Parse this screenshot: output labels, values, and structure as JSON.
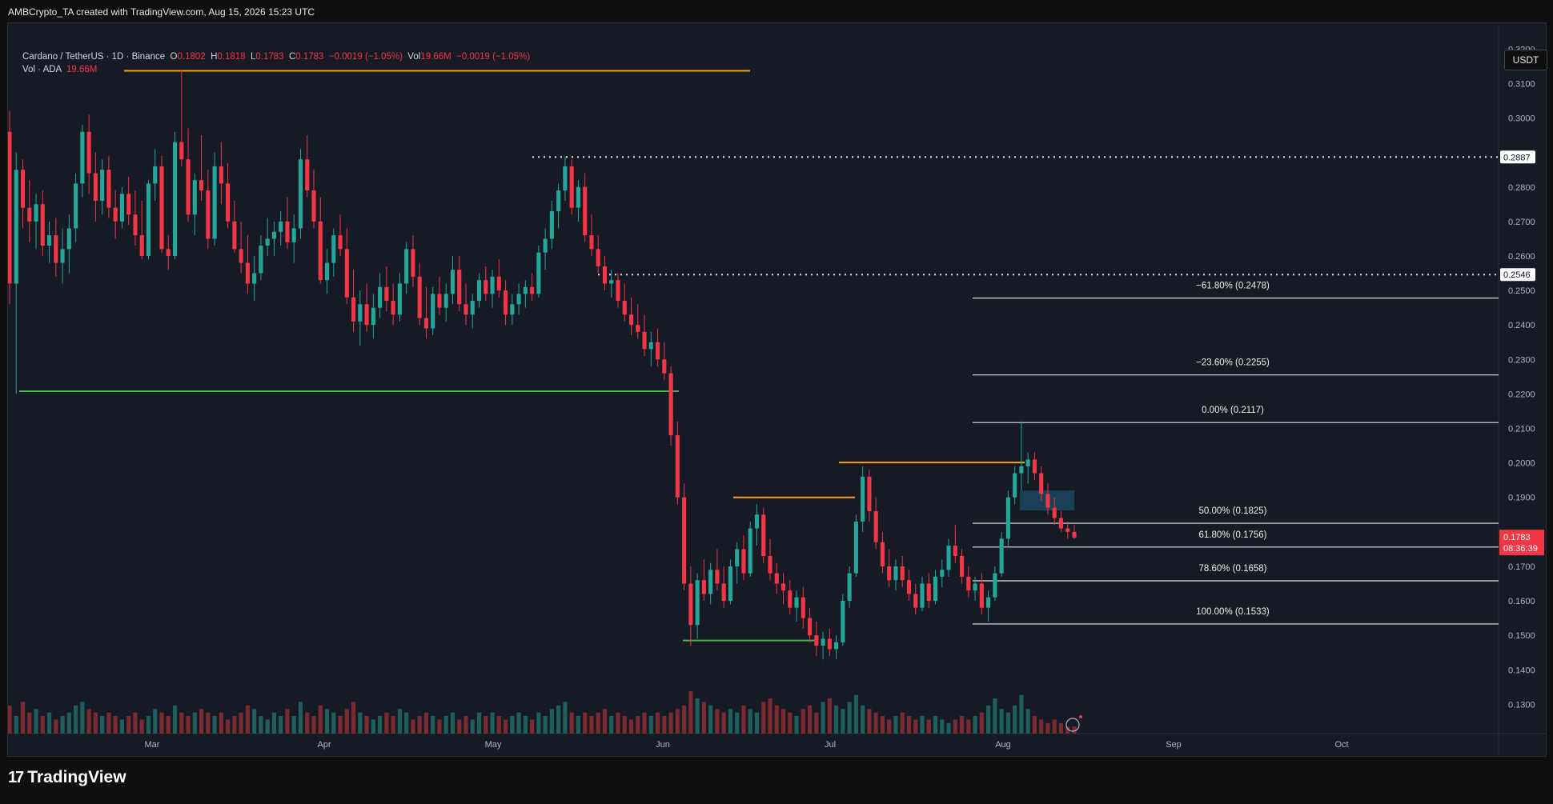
{
  "header": {
    "caption": "AMBCrypto_TA created with TradingView.com, Aug 15, 2026 15:23 UTC"
  },
  "legend": {
    "symbol": "Cardano / TetherUS · 1D · Binance",
    "open_label": "O",
    "open": "0.1802",
    "high_label": "H",
    "high": "0.1818",
    "low_label": "L",
    "low": "0.1783",
    "close_label": "C",
    "close": "0.1783",
    "change": "−0.0019 (−1.05%)",
    "vol_label": "Vol",
    "vol": "19.66M",
    "vol_change": "−0.0019 (−1.05%)",
    "vol_row_label": "Vol · ADA",
    "vol_row_value": "19.66M"
  },
  "currency_button": "USDT",
  "footer": {
    "brand": "TradingView",
    "mark": "17"
  },
  "colors": {
    "up": "#26a69a",
    "down": "#f23645",
    "orange": "#f7a21b",
    "green": "#4caf50",
    "white_line": "#e6e6e6",
    "price_tag": "#f23645"
  },
  "chart_data": {
    "type": "candlestick",
    "y_axis": {
      "range": [
        0.1215,
        0.3275
      ],
      "ticks": [
        "0.3200",
        "0.3100",
        "0.3000",
        "0.2800",
        "0.2700",
        "0.2600",
        "0.2500",
        "0.2400",
        "0.2300",
        "0.2200",
        "0.2100",
        "0.2000",
        "0.1900",
        "0.1700",
        "0.1600",
        "0.1500",
        "0.1400",
        "0.1300"
      ]
    },
    "x_axis": {
      "ticks": [
        "Mar",
        "Apr",
        "May",
        "Jun",
        "Jul",
        "Aug",
        "Sep",
        "Oct"
      ]
    },
    "current_price": {
      "value": "0.1783",
      "countdown": "08:36:39"
    },
    "price_tags": [
      {
        "value": "0.2887"
      },
      {
        "value": "0.2546"
      }
    ],
    "fib_levels": [
      {
        "label": "−61.80% (0.2478)",
        "price": 0.2478
      },
      {
        "label": "−23.60% (0.2255)",
        "price": 0.2255
      },
      {
        "label": "0.00% (0.2117)",
        "price": 0.2117
      },
      {
        "label": "50.00% (0.1825)",
        "price": 0.1825
      },
      {
        "label": "61.80% (0.1756)",
        "price": 0.1756
      },
      {
        "label": "78.60% (0.1658)",
        "price": 0.1658
      },
      {
        "label": "100.00% (0.1533)",
        "price": 0.1533
      }
    ],
    "horizontal_lines": [
      {
        "color": "orange",
        "price": 0.3137
      },
      {
        "color": "green",
        "price": 0.2208
      },
      {
        "color": "orange",
        "price": 0.19
      },
      {
        "color": "orange",
        "price": 0.2001
      },
      {
        "color": "green",
        "price": 0.1485
      }
    ],
    "dotted_lines": [
      {
        "price": 0.2887
      },
      {
        "price": 0.2546
      }
    ],
    "candles": [
      [
        0.296,
        0.302,
        0.246,
        0.252
      ],
      [
        0.252,
        0.29,
        0.22,
        0.285
      ],
      [
        0.285,
        0.288,
        0.268,
        0.274
      ],
      [
        0.274,
        0.282,
        0.264,
        0.27
      ],
      [
        0.27,
        0.278,
        0.262,
        0.275
      ],
      [
        0.275,
        0.279,
        0.26,
        0.263
      ],
      [
        0.263,
        0.27,
        0.258,
        0.266
      ],
      [
        0.266,
        0.271,
        0.254,
        0.258
      ],
      [
        0.258,
        0.268,
        0.252,
        0.262
      ],
      [
        0.262,
        0.272,
        0.255,
        0.268
      ],
      [
        0.268,
        0.284,
        0.264,
        0.281
      ],
      [
        0.281,
        0.298,
        0.277,
        0.296
      ],
      [
        0.296,
        0.301,
        0.278,
        0.284
      ],
      [
        0.284,
        0.29,
        0.27,
        0.276
      ],
      [
        0.276,
        0.288,
        0.272,
        0.285
      ],
      [
        0.285,
        0.289,
        0.271,
        0.274
      ],
      [
        0.274,
        0.279,
        0.265,
        0.27
      ],
      [
        0.27,
        0.28,
        0.268,
        0.278
      ],
      [
        0.278,
        0.283,
        0.269,
        0.272
      ],
      [
        0.272,
        0.279,
        0.263,
        0.266
      ],
      [
        0.266,
        0.276,
        0.259,
        0.26
      ],
      [
        0.26,
        0.282,
        0.259,
        0.281
      ],
      [
        0.281,
        0.291,
        0.276,
        0.286
      ],
      [
        0.286,
        0.289,
        0.261,
        0.262
      ],
      [
        0.262,
        0.266,
        0.256,
        0.26
      ],
      [
        0.26,
        0.296,
        0.259,
        0.293
      ],
      [
        0.293,
        0.314,
        0.286,
        0.288
      ],
      [
        0.288,
        0.297,
        0.27,
        0.272
      ],
      [
        0.272,
        0.284,
        0.266,
        0.282
      ],
      [
        0.282,
        0.295,
        0.276,
        0.279
      ],
      [
        0.279,
        0.285,
        0.262,
        0.265
      ],
      [
        0.265,
        0.29,
        0.263,
        0.286
      ],
      [
        0.286,
        0.293,
        0.275,
        0.281
      ],
      [
        0.281,
        0.287,
        0.268,
        0.27
      ],
      [
        0.27,
        0.276,
        0.261,
        0.262
      ],
      [
        0.262,
        0.27,
        0.255,
        0.258
      ],
      [
        0.258,
        0.266,
        0.249,
        0.252
      ],
      [
        0.252,
        0.26,
        0.247,
        0.255
      ],
      [
        0.255,
        0.266,
        0.253,
        0.263
      ],
      [
        0.263,
        0.271,
        0.26,
        0.265
      ],
      [
        0.265,
        0.27,
        0.26,
        0.267
      ],
      [
        0.267,
        0.273,
        0.263,
        0.27
      ],
      [
        0.27,
        0.277,
        0.262,
        0.264
      ],
      [
        0.264,
        0.272,
        0.258,
        0.268
      ],
      [
        0.268,
        0.291,
        0.265,
        0.288
      ],
      [
        0.288,
        0.295,
        0.277,
        0.279
      ],
      [
        0.279,
        0.285,
        0.268,
        0.27
      ],
      [
        0.27,
        0.277,
        0.252,
        0.253
      ],
      [
        0.253,
        0.262,
        0.249,
        0.258
      ],
      [
        0.258,
        0.268,
        0.254,
        0.266
      ],
      [
        0.266,
        0.272,
        0.26,
        0.262
      ],
      [
        0.262,
        0.268,
        0.246,
        0.248
      ],
      [
        0.248,
        0.256,
        0.238,
        0.241
      ],
      [
        0.241,
        0.25,
        0.234,
        0.246
      ],
      [
        0.246,
        0.252,
        0.238,
        0.24
      ],
      [
        0.24,
        0.249,
        0.236,
        0.245
      ],
      [
        0.245,
        0.255,
        0.242,
        0.251
      ],
      [
        0.251,
        0.257,
        0.244,
        0.247
      ],
      [
        0.247,
        0.252,
        0.24,
        0.243
      ],
      [
        0.243,
        0.255,
        0.241,
        0.252
      ],
      [
        0.252,
        0.264,
        0.249,
        0.262
      ],
      [
        0.262,
        0.266,
        0.251,
        0.254
      ],
      [
        0.254,
        0.258,
        0.24,
        0.242
      ],
      [
        0.242,
        0.251,
        0.236,
        0.239
      ],
      [
        0.239,
        0.251,
        0.237,
        0.249
      ],
      [
        0.249,
        0.254,
        0.243,
        0.245
      ],
      [
        0.245,
        0.252,
        0.241,
        0.249
      ],
      [
        0.249,
        0.26,
        0.246,
        0.256
      ],
      [
        0.256,
        0.26,
        0.244,
        0.246
      ],
      [
        0.246,
        0.252,
        0.24,
        0.243
      ],
      [
        0.243,
        0.249,
        0.239,
        0.247
      ],
      [
        0.247,
        0.255,
        0.245,
        0.253
      ],
      [
        0.253,
        0.257,
        0.247,
        0.249
      ],
      [
        0.249,
        0.256,
        0.245,
        0.254
      ],
      [
        0.254,
        0.259,
        0.248,
        0.25
      ],
      [
        0.25,
        0.253,
        0.24,
        0.243
      ],
      [
        0.243,
        0.249,
        0.24,
        0.246
      ],
      [
        0.246,
        0.252,
        0.243,
        0.249
      ],
      [
        0.249,
        0.253,
        0.245,
        0.251
      ],
      [
        0.251,
        0.255,
        0.247,
        0.249
      ],
      [
        0.249,
        0.263,
        0.248,
        0.261
      ],
      [
        0.261,
        0.268,
        0.256,
        0.265
      ],
      [
        0.265,
        0.276,
        0.262,
        0.273
      ],
      [
        0.273,
        0.281,
        0.268,
        0.279
      ],
      [
        0.279,
        0.289,
        0.276,
        0.286
      ],
      [
        0.286,
        0.288,
        0.272,
        0.274
      ],
      [
        0.274,
        0.282,
        0.27,
        0.28
      ],
      [
        0.28,
        0.284,
        0.264,
        0.266
      ],
      [
        0.266,
        0.272,
        0.26,
        0.262
      ],
      [
        0.262,
        0.266,
        0.255,
        0.257
      ],
      [
        0.257,
        0.26,
        0.25,
        0.252
      ],
      [
        0.252,
        0.256,
        0.248,
        0.253
      ],
      [
        0.253,
        0.255,
        0.245,
        0.247
      ],
      [
        0.247,
        0.252,
        0.241,
        0.243
      ],
      [
        0.243,
        0.248,
        0.237,
        0.24
      ],
      [
        0.24,
        0.246,
        0.236,
        0.238
      ],
      [
        0.238,
        0.243,
        0.231,
        0.233
      ],
      [
        0.233,
        0.238,
        0.228,
        0.235
      ],
      [
        0.235,
        0.239,
        0.228,
        0.23
      ],
      [
        0.23,
        0.235,
        0.224,
        0.226
      ],
      [
        0.226,
        0.228,
        0.205,
        0.208
      ],
      [
        0.208,
        0.212,
        0.188,
        0.19
      ],
      [
        0.19,
        0.194,
        0.163,
        0.165
      ],
      [
        0.165,
        0.17,
        0.147,
        0.153
      ],
      [
        0.153,
        0.168,
        0.149,
        0.166
      ],
      [
        0.166,
        0.172,
        0.16,
        0.162
      ],
      [
        0.162,
        0.171,
        0.159,
        0.169
      ],
      [
        0.169,
        0.175,
        0.163,
        0.165
      ],
      [
        0.165,
        0.17,
        0.158,
        0.16
      ],
      [
        0.16,
        0.172,
        0.159,
        0.17
      ],
      [
        0.17,
        0.177,
        0.165,
        0.175
      ],
      [
        0.175,
        0.179,
        0.166,
        0.168
      ],
      [
        0.168,
        0.183,
        0.167,
        0.181
      ],
      [
        0.181,
        0.188,
        0.176,
        0.185
      ],
      [
        0.185,
        0.187,
        0.171,
        0.173
      ],
      [
        0.173,
        0.178,
        0.166,
        0.168
      ],
      [
        0.168,
        0.171,
        0.162,
        0.165
      ],
      [
        0.165,
        0.168,
        0.159,
        0.163
      ],
      [
        0.163,
        0.166,
        0.156,
        0.158
      ],
      [
        0.158,
        0.163,
        0.154,
        0.161
      ],
      [
        0.161,
        0.164,
        0.152,
        0.155
      ],
      [
        0.155,
        0.158,
        0.148,
        0.15
      ],
      [
        0.15,
        0.154,
        0.144,
        0.147
      ],
      [
        0.147,
        0.151,
        0.143,
        0.149
      ],
      [
        0.149,
        0.152,
        0.144,
        0.146
      ],
      [
        0.146,
        0.15,
        0.143,
        0.148
      ],
      [
        0.148,
        0.162,
        0.147,
        0.16
      ],
      [
        0.16,
        0.17,
        0.158,
        0.168
      ],
      [
        0.168,
        0.185,
        0.167,
        0.183
      ],
      [
        0.183,
        0.199,
        0.18,
        0.196
      ],
      [
        0.196,
        0.198,
        0.183,
        0.186
      ],
      [
        0.186,
        0.19,
        0.175,
        0.177
      ],
      [
        0.177,
        0.18,
        0.168,
        0.17
      ],
      [
        0.17,
        0.175,
        0.164,
        0.166
      ],
      [
        0.166,
        0.172,
        0.163,
        0.17
      ],
      [
        0.17,
        0.173,
        0.164,
        0.166
      ],
      [
        0.166,
        0.169,
        0.16,
        0.162
      ],
      [
        0.162,
        0.165,
        0.156,
        0.158
      ],
      [
        0.158,
        0.167,
        0.157,
        0.165
      ],
      [
        0.165,
        0.168,
        0.158,
        0.16
      ],
      [
        0.16,
        0.169,
        0.159,
        0.167
      ],
      [
        0.167,
        0.172,
        0.164,
        0.169
      ],
      [
        0.169,
        0.178,
        0.167,
        0.176
      ],
      [
        0.176,
        0.182,
        0.171,
        0.173
      ],
      [
        0.173,
        0.175,
        0.165,
        0.167
      ],
      [
        0.167,
        0.17,
        0.161,
        0.163
      ],
      [
        0.163,
        0.167,
        0.16,
        0.165
      ],
      [
        0.165,
        0.168,
        0.156,
        0.158
      ],
      [
        0.158,
        0.163,
        0.154,
        0.161
      ],
      [
        0.161,
        0.17,
        0.16,
        0.168
      ],
      [
        0.168,
        0.18,
        0.167,
        0.178
      ],
      [
        0.178,
        0.192,
        0.176,
        0.19
      ],
      [
        0.19,
        0.199,
        0.188,
        0.197
      ],
      [
        0.197,
        0.212,
        0.192,
        0.199
      ],
      [
        0.199,
        0.203,
        0.194,
        0.201
      ],
      [
        0.201,
        0.203,
        0.195,
        0.197
      ],
      [
        0.197,
        0.199,
        0.189,
        0.191
      ],
      [
        0.191,
        0.194,
        0.185,
        0.187
      ],
      [
        0.187,
        0.19,
        0.182,
        0.184
      ],
      [
        0.184,
        0.186,
        0.18,
        0.181
      ],
      [
        0.181,
        0.183,
        0.178,
        0.18
      ],
      [
        0.18,
        0.182,
        0.178,
        0.1783
      ]
    ],
    "volume_range": [
      0,
      50
    ],
    "volumes": [
      8,
      5,
      9,
      6,
      7,
      5,
      6,
      4,
      5,
      6,
      8,
      9,
      7,
      6,
      5,
      6,
      5,
      4,
      5,
      6,
      4,
      5,
      7,
      6,
      5,
      8,
      6,
      5,
      6,
      7,
      6,
      5,
      6,
      4,
      5,
      6,
      8,
      7,
      5,
      4,
      6,
      5,
      7,
      5,
      9,
      6,
      5,
      8,
      7,
      6,
      5,
      7,
      9,
      6,
      5,
      4,
      5,
      6,
      5,
      7,
      6,
      4,
      5,
      6,
      5,
      4,
      5,
      6,
      4,
      5,
      4,
      6,
      5,
      6,
      5,
      4,
      5,
      6,
      5,
      4,
      6,
      5,
      7,
      8,
      9,
      6,
      5,
      6,
      5,
      6,
      7,
      5,
      6,
      5,
      4,
      5,
      6,
      5,
      6,
      5,
      6,
      7,
      8,
      12,
      10,
      9,
      8,
      7,
      6,
      7,
      6,
      8,
      7,
      6,
      9,
      10,
      8,
      7,
      6,
      5,
      7,
      8,
      6,
      9,
      10,
      8,
      7,
      9,
      11,
      8,
      7,
      6,
      5,
      4,
      5,
      6,
      5,
      4,
      5,
      4,
      5,
      4,
      3,
      4,
      5,
      4,
      5,
      6,
      8,
      10,
      7,
      6,
      8,
      11,
      7,
      5,
      4,
      3,
      4,
      3,
      2,
      2
    ]
  }
}
